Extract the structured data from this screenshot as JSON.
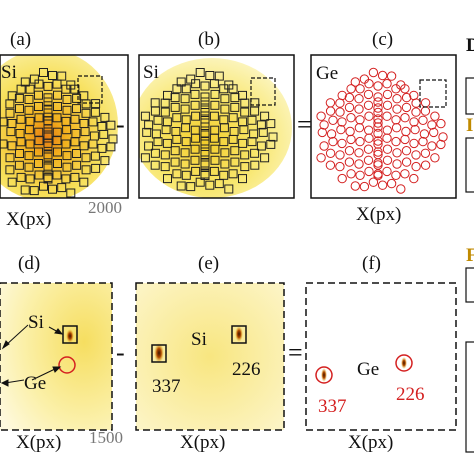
{
  "figure": {
    "panels": [
      {
        "id": "a",
        "label": "(a)",
        "element": "Si",
        "xlabel": "X(px)"
      },
      {
        "id": "b",
        "label": "(b)",
        "element": "Si",
        "xlabel": ""
      },
      {
        "id": "c",
        "label": "(c)",
        "element": "Ge",
        "xlabel": "X(px)"
      },
      {
        "id": "d",
        "label": "(d)",
        "xlabel": "X(px)",
        "annotations": [
          "Si",
          "Ge"
        ]
      },
      {
        "id": "e",
        "label": "(e)",
        "element": "Si",
        "xlabel": "X(px)",
        "spots": [
          "337",
          "226"
        ]
      },
      {
        "id": "f",
        "label": "(f)",
        "element": "Ge",
        "xlabel": "X(px)",
        "spots": [
          "337",
          "226"
        ]
      }
    ],
    "operators": {
      "minus": "-",
      "equals": "="
    },
    "tick_labels": {
      "top": "2000",
      "bottom": "1500"
    },
    "right_edge_letters": [
      "D",
      "I",
      "F"
    ],
    "colors": {
      "square": "#222222",
      "circle": "#d42020",
      "glow": "#f3d21a"
    }
  }
}
